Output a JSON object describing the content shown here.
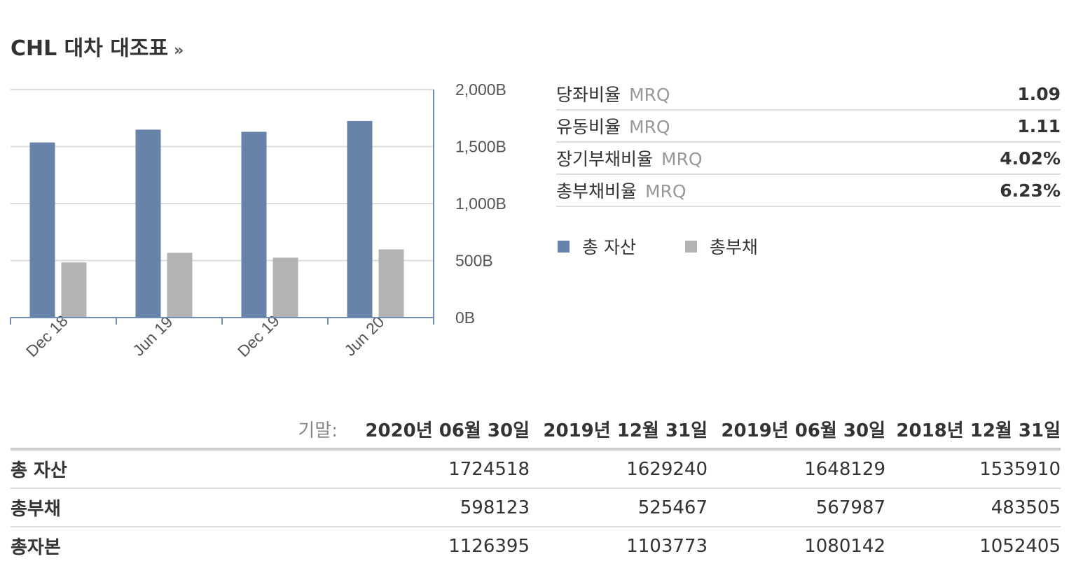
{
  "title": "CHL 대차 대조표",
  "title_more": "»",
  "chart_data": {
    "type": "bar",
    "categories": [
      "Dec 18",
      "Jun 19",
      "Dec 19",
      "Jun 20"
    ],
    "series": [
      {
        "name": "총 자산",
        "values": [
          1535910,
          1648129,
          1629240,
          1724518
        ],
        "color": "#6783aa"
      },
      {
        "name": "총부채",
        "values": [
          483505,
          567987,
          525467,
          598123
        ],
        "color": "#b3b3b3"
      }
    ],
    "ylim": [
      0,
      2000000
    ],
    "yticks": [
      0,
      500000,
      1000000,
      1500000,
      2000000
    ],
    "ytick_labels": [
      "0B",
      "500B",
      "1,000B",
      "1,500B",
      "2,000B"
    ],
    "grid": true,
    "y_axis_side": "right"
  },
  "ratios": [
    {
      "name": "당좌비율",
      "tag": "MRQ",
      "value": "1.09"
    },
    {
      "name": "유동비율",
      "tag": "MRQ",
      "value": "1.11"
    },
    {
      "name": "장기부채비율",
      "tag": "MRQ",
      "value": "4.02%"
    },
    {
      "name": "총부채비율",
      "tag": "MRQ",
      "value": "6.23%"
    }
  ],
  "legend": [
    {
      "label": "총 자산",
      "color": "#6783aa"
    },
    {
      "label": "총부채",
      "color": "#b3b3b3"
    }
  ],
  "table": {
    "period_label": "기말:",
    "columns": [
      "2020년 06월 30일",
      "2019년 12월 31일",
      "2019년 06월 30일",
      "2018년 12월 31일"
    ],
    "rows": [
      {
        "label": "총 자산",
        "values": [
          "1724518",
          "1629240",
          "1648129",
          "1535910"
        ]
      },
      {
        "label": "총부채",
        "values": [
          "598123",
          "525467",
          "567987",
          "483505"
        ]
      },
      {
        "label": "총자본",
        "values": [
          "1126395",
          "1103773",
          "1080142",
          "1052405"
        ]
      }
    ]
  }
}
